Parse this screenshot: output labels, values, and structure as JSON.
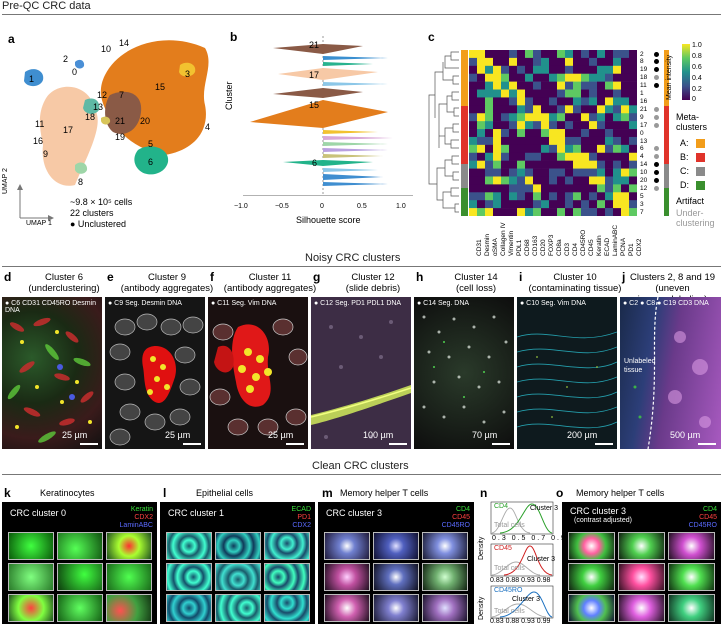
{
  "sections": {
    "preqc": "Pre-QC CRC data",
    "noisy": "Noisy CRC clusters",
    "clean": "Clean CRC clusters"
  },
  "panel_letters": [
    "a",
    "b",
    "c",
    "d",
    "e",
    "f",
    "g",
    "h",
    "i",
    "j",
    "k",
    "l",
    "m",
    "n",
    "o"
  ],
  "umap": {
    "xlabel": "UMAP 1",
    "ylabel": "UMAP 2",
    "note_cells": "~9.8 × 10⁵ cells",
    "note_clusters": "22 clusters",
    "note_unclustered": "● Unclustered",
    "cluster_labels": [
      "0",
      "1",
      "2",
      "3",
      "4",
      "5",
      "6",
      "7",
      "8",
      "9",
      "10",
      "11",
      "12",
      "13",
      "14",
      "15",
      "16",
      "17",
      "18",
      "19",
      "20",
      "21"
    ]
  },
  "silhouette": {
    "ylabel": "Cluster",
    "xlabel": "Silhouette score",
    "ticks": [
      "−1.0",
      "−0.5",
      "0",
      "0.5",
      "1.0"
    ],
    "side_labels": [
      "21",
      "17",
      "15",
      "6"
    ]
  },
  "heatmap": {
    "markers": [
      "CD31",
      "Desmin",
      "αSMA",
      "Collagen IV",
      "Vimentin",
      "PDL1",
      "CD68",
      "CD163",
      "CD20",
      "FOXP3",
      "CD8a",
      "CD3",
      "CD4",
      "CD45RO",
      "CD45",
      "Keratin",
      "ECAD",
      "LaminABC",
      "PCNA",
      "PD1",
      "CDX2"
    ],
    "row_labels": [
      "2",
      "8",
      "19",
      "18",
      "11",
      "1",
      "16",
      "21",
      "9",
      "17",
      "0",
      "13",
      "6",
      "4",
      "14",
      "10",
      "20",
      "12",
      "5",
      "3",
      "7"
    ],
    "colorbar_title": "Mean intensity",
    "colorbar_ticks": [
      "1.0",
      "0.8",
      "0.6",
      "0.4",
      "0.2",
      "0"
    ],
    "meta_title": "Meta-clusters",
    "meta": [
      "A:",
      "B:",
      "C:",
      "D:"
    ],
    "artifact": "Artifact",
    "underclustering": "Under-clustering"
  },
  "noisy_panels": [
    {
      "title": "Cluster 6",
      "subtitle": "(underclustering)",
      "legend": "● C6  CD31 CD45RO Desmin DNA",
      "scale": "25 µm"
    },
    {
      "title": "Cluster 9",
      "subtitle": "(antibody aggregates)",
      "legend": "● C9   Seg.  Desmin DNA",
      "scale": "25 µm"
    },
    {
      "title": "Cluster 11",
      "subtitle": "(antibody aggregates)",
      "legend": "● C11   Seg.  Vim DNA",
      "scale": "25 µm"
    },
    {
      "title": "Cluster 12",
      "subtitle": "(slide debris)",
      "legend": "● C12   Seg.  PD1  PDL1  DNA",
      "scale": "100 µm"
    },
    {
      "title": "Cluster 14",
      "subtitle": "(cell loss)",
      "legend": "● C14   Seg.  DNA",
      "scale": "70 µm"
    },
    {
      "title": "Cluster 10",
      "subtitle": "(contaminating tissue)",
      "legend": "● C10   Seg.  Vim DNA",
      "scale": "200 µm"
    },
    {
      "title": "Clusters 2, 8 and 19",
      "subtitle": "(uneven immunolabeling)",
      "legend": "● C2 ● C8 ● C19   CD3  DNA",
      "scale": "500 µm",
      "inset_text": "Unlabeled tissue"
    }
  ],
  "clean_panels": [
    {
      "title": "Keratinocytes",
      "cluster": "CRC cluster  0",
      "channels": [
        "Keratin",
        "CDX2",
        "LaminABC"
      ]
    },
    {
      "title": "Epithelial cells",
      "cluster": "CRC cluster  1",
      "channels": [
        "ECAD",
        "PD1",
        "CDX2"
      ]
    },
    {
      "title": "Memory helper T cells",
      "cluster": "CRC cluster  3",
      "channels": [
        "CD4",
        "CD45",
        "CD45RO"
      ]
    },
    {
      "title": "Memory helper T cells",
      "cluster": "CRC cluster  3",
      "cluster_sub": "(contrast adjusted)",
      "channels": [
        "CD4",
        "CD45",
        "CD45RO"
      ]
    }
  ],
  "density": {
    "ylabel": "Density",
    "plots": [
      {
        "marker": "CD4",
        "ticks": [
          "0.3",
          "0.5",
          "0.7",
          "0.9"
        ],
        "series": "Cluster 3",
        "ref": "Total cells"
      },
      {
        "marker": "CD45",
        "ticks": [
          "0.83",
          "0.88",
          "0.93",
          "0.98"
        ],
        "series": "Cluster 3",
        "ref": "Total cells"
      },
      {
        "marker": "CD45RO",
        "ticks": [
          "0.83",
          "0.88",
          "0.93",
          "0.99"
        ],
        "series": "Cluster 3",
        "ref": "Total cells"
      }
    ]
  },
  "colors": {
    "orange": "#e37d1c",
    "peach": "#f7c9a6",
    "brown": "#8a5a46",
    "teal": "#22b38a",
    "blue": "#3f8ed0",
    "yellow": "#f2c230",
    "metaA": "#f29d1a",
    "metaB": "#e0332a",
    "metaC": "#8a8a8a",
    "metaD": "#3a8f2e"
  }
}
